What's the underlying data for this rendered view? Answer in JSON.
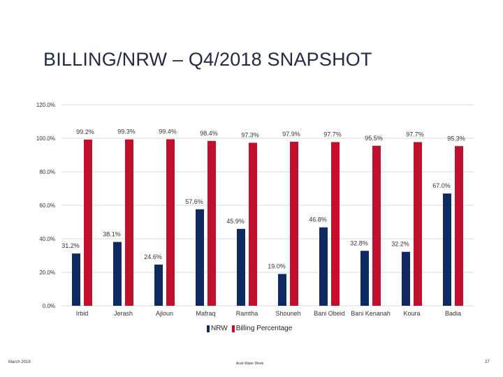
{
  "slide": {
    "title": "BILLING/NRW – Q4/2018 SNAPSHOT",
    "footer_left": "March 2019",
    "footer_center": "Arab Water Week",
    "footer_right": "27"
  },
  "chart_data": {
    "type": "bar",
    "categories": [
      "Irbid",
      "Jerash",
      "Ajloun",
      "Mafraq",
      "Ramtha",
      "Shouneh",
      "Bani Obeid",
      "Bani Kenanah",
      "Koura",
      "Badia"
    ],
    "series": [
      {
        "name": "NRW",
        "color": "#0f2a63",
        "values": [
          31.2,
          38.1,
          24.6,
          57.6,
          45.9,
          19.0,
          46.8,
          32.8,
          32.2,
          67.0
        ],
        "labels": [
          "31.2%",
          "38.1%",
          "24.6%",
          "57.6%",
          "45.9%",
          "19.0%",
          "46.8%",
          "32.8%",
          "32.2%",
          "67.0%"
        ]
      },
      {
        "name": "Billing Percentage",
        "color": "#c0102e",
        "values": [
          99.2,
          99.3,
          99.4,
          98.4,
          97.3,
          97.9,
          97.7,
          95.5,
          97.7,
          95.3
        ],
        "labels": [
          "99.2%",
          "99.3%",
          "99.4%",
          "98.4%",
          "97.3%",
          "97.9%",
          "97.7%",
          "95.5%",
          "97.7%",
          "95.3%"
        ]
      }
    ],
    "yticks": [
      "0.0%",
      "20.0%",
      "40.0%",
      "60.0%",
      "80.0%",
      "100.0%",
      "120.0%"
    ],
    "ylim": [
      0,
      120
    ],
    "grid": true,
    "legend_position": "bottom"
  }
}
